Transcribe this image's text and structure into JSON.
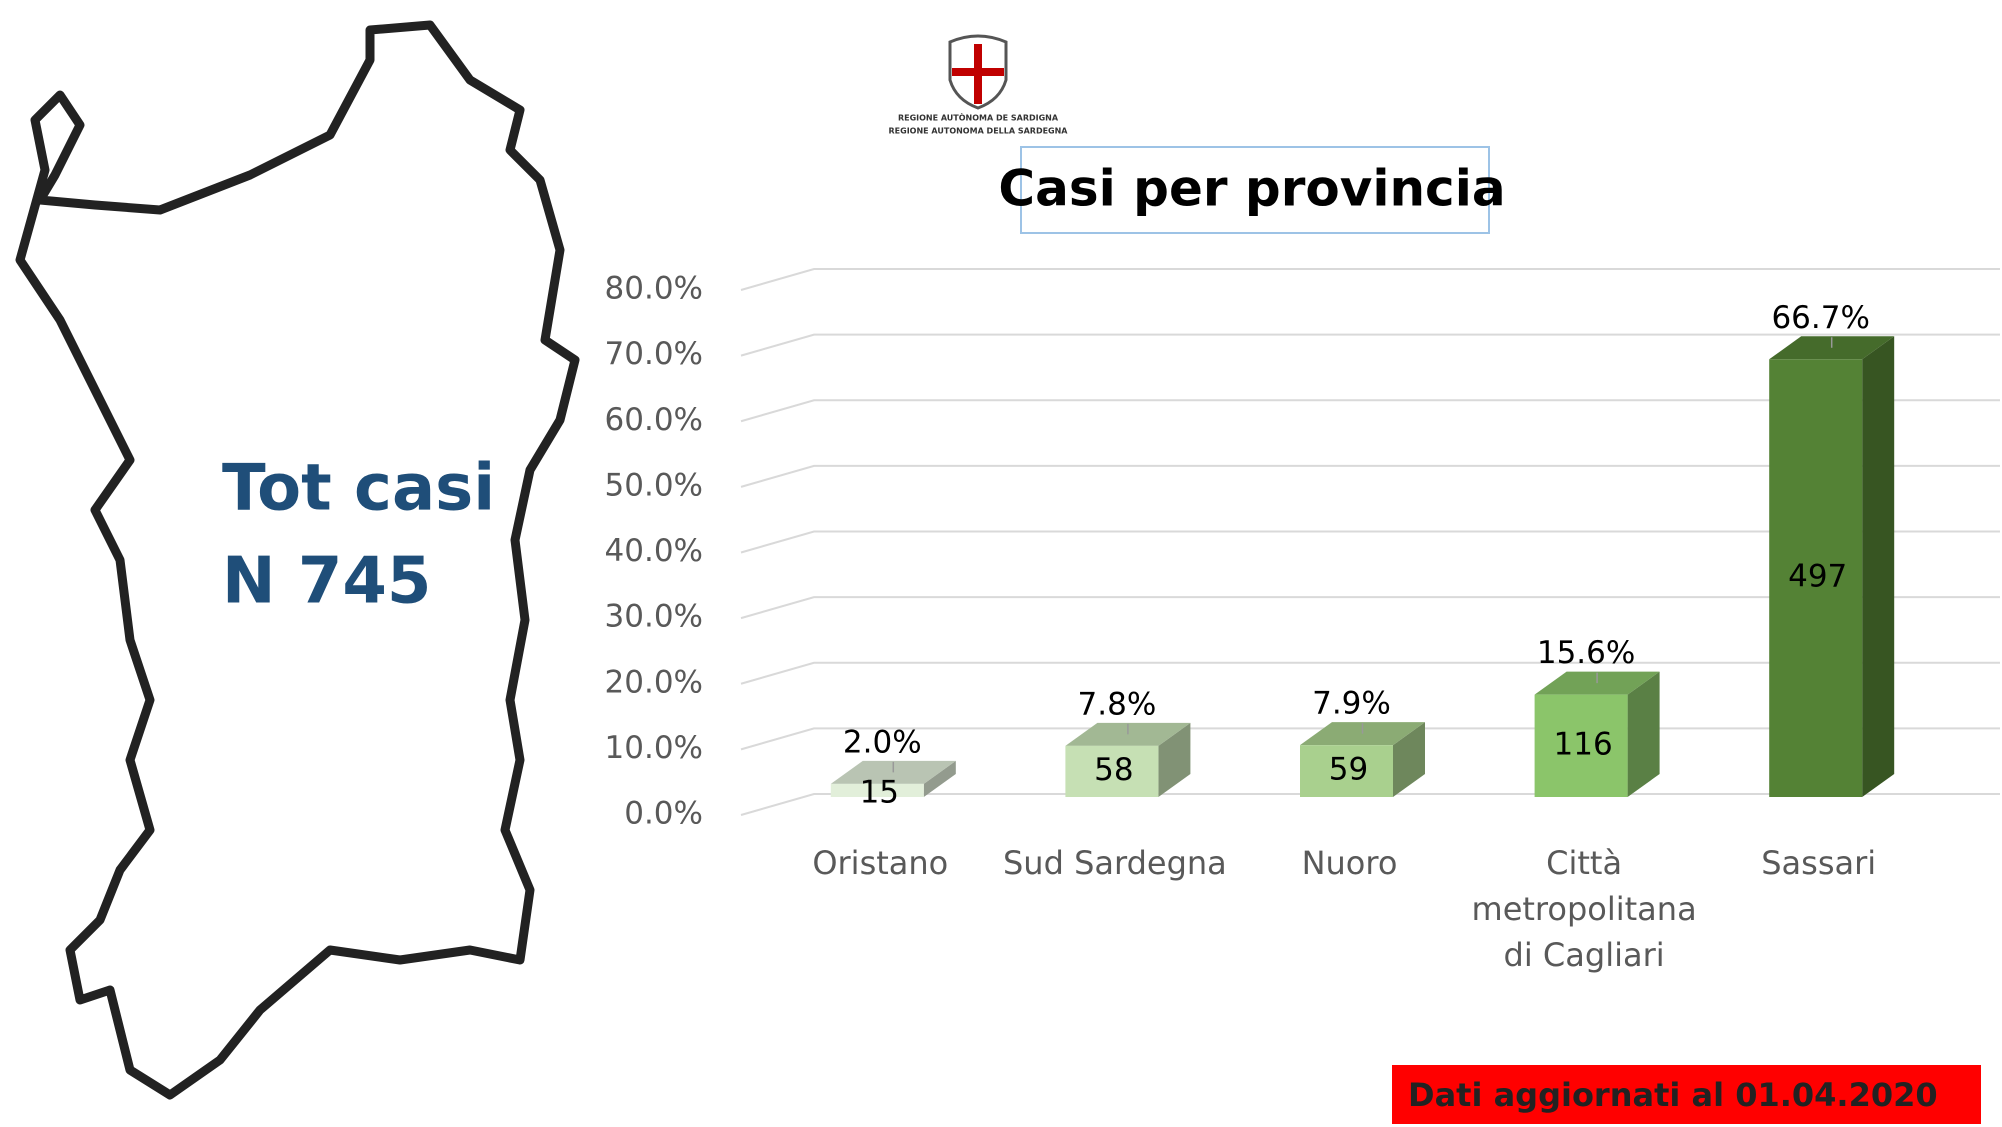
{
  "chart_data": {
    "type": "bar3d",
    "title": "Casi per provincia",
    "categories": [
      "Oristano",
      "Sud Sardegna",
      "Nuoro",
      "Città metropolitana di Cagliari",
      "Sassari"
    ],
    "values": [
      2.0,
      7.8,
      7.9,
      15.6,
      66.7
    ],
    "value_labels": [
      "2.0%",
      "7.8%",
      "7.9%",
      "15.6%",
      "66.7%"
    ],
    "counts": [
      15,
      58,
      59,
      116,
      497
    ],
    "colors": [
      "#e2efda",
      "#c6e0b4",
      "#a9d08e",
      "#8bc56a",
      "#548235"
    ],
    "ylim": [
      0,
      80
    ],
    "yticks": [
      {
        "value": 0,
        "label": "0.0%"
      },
      {
        "value": 10,
        "label": "10.0%"
      },
      {
        "value": 20,
        "label": "20.0%"
      },
      {
        "value": 30,
        "label": "30.0%"
      },
      {
        "value": 40,
        "label": "40.0%"
      },
      {
        "value": 50,
        "label": "50.0%"
      },
      {
        "value": 60,
        "label": "60.0%"
      },
      {
        "value": 70,
        "label": "70.0%"
      },
      {
        "value": 80,
        "label": "80.0%"
      }
    ],
    "grid": true
  },
  "total": {
    "line1": "Tot casi",
    "line2": "N 745"
  },
  "logo": {
    "line1": "REGIONE AUTÒNOMA DE SARDIGNA",
    "line2": "REGIONE AUTONOMA DELLA SARDEGNA"
  },
  "footer": "Dati aggiornati al 01.04.2020"
}
